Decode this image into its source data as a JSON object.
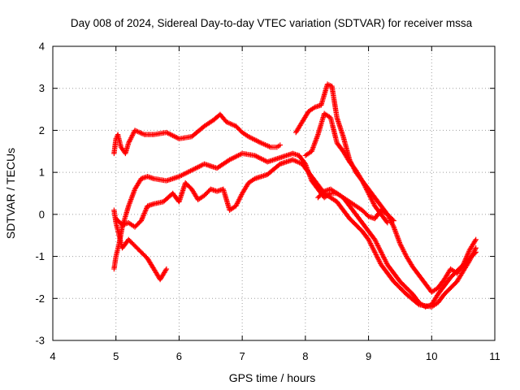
{
  "chart_data": {
    "type": "scatter",
    "title": "Day 008 of 2024, Sidereal Day-to-day VTEC variation (SDTVAR) for receiver mssa",
    "xlabel": "GPS time / hours",
    "ylabel": "SDTVAR / TECUs",
    "xlim": [
      4,
      11
    ],
    "ylim": [
      -3,
      4
    ],
    "x_ticks": [
      "4",
      "5",
      "6",
      "7",
      "8",
      "9",
      "10",
      "11"
    ],
    "y_ticks": [
      "-3",
      "-2",
      "-1",
      "0",
      "1",
      "2",
      "3",
      "4"
    ],
    "grid": true,
    "marker": "plus",
    "color": "#ff0000",
    "series": [
      {
        "x": [
          4.97,
          5.0,
          5.03,
          5.08,
          5.15,
          5.2,
          5.3,
          5.45,
          5.6,
          5.8,
          6.0,
          6.2,
          6.4,
          6.55,
          6.65,
          6.75,
          6.9,
          7.0,
          7.1,
          7.3,
          7.45,
          7.55,
          7.6
        ],
        "y": [
          1.45,
          1.8,
          1.9,
          1.6,
          1.45,
          1.7,
          2.0,
          1.9,
          1.9,
          1.95,
          1.8,
          1.85,
          2.1,
          2.25,
          2.38,
          2.2,
          2.1,
          1.95,
          1.85,
          1.7,
          1.6,
          1.6,
          1.65
        ]
      },
      {
        "x": [
          4.97,
          5.0,
          5.05,
          5.1,
          5.2,
          5.3,
          5.4,
          5.5,
          5.6,
          5.8,
          6.0,
          6.2,
          6.4,
          6.6,
          6.8,
          7.0,
          7.2,
          7.4,
          7.6,
          7.8,
          7.9
        ],
        "y": [
          -1.3,
          -1.0,
          -0.7,
          -0.3,
          0.2,
          0.6,
          0.85,
          0.9,
          0.85,
          0.8,
          0.9,
          1.05,
          1.2,
          1.1,
          1.3,
          1.45,
          1.4,
          1.25,
          1.35,
          1.45,
          1.4
        ]
      },
      {
        "x": [
          4.97,
          5.0,
          5.05,
          5.1,
          5.2,
          5.3,
          5.4,
          5.5,
          5.6,
          5.7,
          5.8
        ],
        "y": [
          0.1,
          -0.2,
          -0.5,
          -0.8,
          -0.6,
          -0.75,
          -0.9,
          -1.05,
          -1.3,
          -1.55,
          -1.3
        ]
      },
      {
        "x": [
          5.0,
          5.1,
          5.2,
          5.3,
          5.4,
          5.5,
          5.6,
          5.75,
          5.9,
          6.0,
          6.1,
          6.2,
          6.3,
          6.4,
          6.5,
          6.6,
          6.7,
          6.8,
          6.9,
          7.0,
          7.1,
          7.2,
          7.4,
          7.6,
          7.8,
          7.95,
          8.1,
          8.3,
          8.5,
          8.7,
          8.9,
          9.0,
          9.1,
          9.2,
          9.4,
          9.6,
          9.8,
          10.0,
          10.1,
          10.2,
          10.4,
          10.6,
          10.7
        ],
        "y": [
          -0.1,
          -0.25,
          -0.2,
          -0.3,
          -0.15,
          0.2,
          0.25,
          0.3,
          0.5,
          0.3,
          0.75,
          0.6,
          0.35,
          0.45,
          0.6,
          0.55,
          0.6,
          0.1,
          0.2,
          0.5,
          0.75,
          0.85,
          0.95,
          1.2,
          1.3,
          1.2,
          0.9,
          0.5,
          0.3,
          -0.1,
          -0.4,
          -0.6,
          -0.9,
          -1.2,
          -1.6,
          -1.9,
          -2.15,
          -2.2,
          -2.1,
          -1.9,
          -1.6,
          -1.1,
          -0.8
        ]
      },
      {
        "x": [
          7.9,
          8.0,
          8.1,
          8.2,
          8.3,
          8.4,
          8.5,
          8.6,
          8.7,
          8.8,
          8.9,
          9.0,
          9.1,
          9.2,
          9.3,
          9.5,
          9.7,
          9.8,
          9.9,
          10.0,
          10.1,
          10.2,
          10.3,
          10.5,
          10.7
        ],
        "y": [
          1.4,
          1.2,
          0.8,
          0.6,
          0.4,
          0.5,
          0.5,
          0.4,
          0.2,
          0.0,
          -0.2,
          -0.4,
          -0.6,
          -0.9,
          -1.2,
          -1.6,
          -1.9,
          -2.1,
          -2.2,
          -2.15,
          -1.9,
          -1.7,
          -1.5,
          -1.2,
          -0.9
        ]
      },
      {
        "x": [
          8.2,
          8.3,
          8.4,
          8.5,
          8.6,
          8.7,
          8.8,
          8.9,
          9.0,
          9.1,
          9.2,
          9.3,
          9.4,
          9.5,
          9.6,
          9.7,
          9.8,
          9.9,
          10.0,
          10.1,
          10.2,
          10.3,
          10.4,
          10.5,
          10.6,
          10.7
        ],
        "y": [
          0.4,
          0.55,
          0.6,
          0.5,
          0.4,
          0.3,
          0.2,
          0.1,
          -0.05,
          -0.1,
          0.1,
          0.0,
          -0.3,
          -0.7,
          -1.0,
          -1.25,
          -1.45,
          -1.65,
          -1.85,
          -1.75,
          -1.55,
          -1.3,
          -1.4,
          -1.2,
          -0.85,
          -0.6
        ]
      },
      {
        "x": [
          7.85,
          7.95,
          8.05,
          8.15,
          8.25,
          8.35,
          8.42,
          8.5,
          8.6,
          8.7,
          8.8,
          8.9,
          9.0,
          9.1,
          9.2,
          9.3
        ],
        "y": [
          1.95,
          2.2,
          2.45,
          2.55,
          2.6,
          3.1,
          3.05,
          2.3,
          1.85,
          1.3,
          1.0,
          0.8,
          0.5,
          0.2,
          0.0,
          -0.2
        ]
      },
      {
        "x": [
          8.0,
          8.1,
          8.2,
          8.3,
          8.4,
          8.5,
          8.6,
          8.7,
          8.8,
          8.9,
          9.0,
          9.1,
          9.2,
          9.3,
          9.4
        ],
        "y": [
          1.4,
          1.5,
          1.9,
          2.4,
          2.3,
          1.7,
          1.5,
          1.25,
          1.05,
          0.8,
          0.6,
          0.4,
          0.2,
          0.0,
          -0.15
        ]
      }
    ]
  }
}
